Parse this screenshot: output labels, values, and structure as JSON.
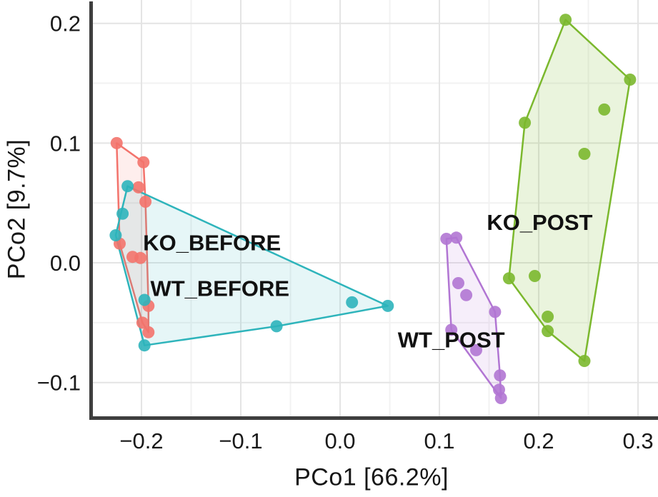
{
  "chart_data": {
    "type": "scatter",
    "title": "",
    "xlabel": "PCo1 [66.2%]",
    "ylabel": "PCo2 [9.7%]",
    "xlim": [
      -0.2511,
      0.3201
    ],
    "ylim": [
      -0.1282,
      0.2195
    ],
    "grid": "major and minor gridlines, white background",
    "legend_position": "inline group labels inside plot",
    "x_ticks": {
      "values": [
        -0.2,
        -0.1,
        0.0,
        0.1,
        0.2,
        0.3
      ],
      "labels": [
        "−0.2",
        "−0.1",
        "0.0",
        "0.1",
        "0.2",
        "0.3"
      ]
    },
    "y_ticks": {
      "values": [
        0.2,
        0.1,
        0.0,
        -0.1
      ],
      "labels": [
        "0.2",
        "0.1",
        "0.0",
        "−0.1"
      ]
    },
    "x_minor": [
      -0.25,
      -0.15,
      -0.05,
      0.05,
      0.15,
      0.25
    ],
    "y_minor": [
      0.15,
      0.05,
      -0.05
    ],
    "series": [
      {
        "name": "KO_BEFORE",
        "color": "#F3736C",
        "fill": "rgba(243,115,108,0.12)",
        "label_xy": [
          -0.129,
          0.017
        ],
        "points": [
          [
            -0.225,
            0.1
          ],
          [
            -0.198,
            0.084
          ],
          [
            -0.203,
            0.063
          ],
          [
            -0.196,
            0.051
          ],
          [
            -0.222,
            0.016
          ],
          [
            -0.209,
            0.005
          ],
          [
            -0.201,
            0.004
          ],
          [
            -0.193,
            -0.036
          ],
          [
            -0.199,
            -0.05
          ],
          [
            -0.193,
            -0.058
          ]
        ]
      },
      {
        "name": "WT_BEFORE",
        "color": "#2EB4BB",
        "fill": "rgba(46,180,187,0.12)",
        "label_xy": [
          -0.121,
          -0.021
        ],
        "points": [
          [
            -0.214,
            0.064
          ],
          [
            -0.219,
            0.041
          ],
          [
            -0.226,
            0.023
          ],
          [
            -0.197,
            -0.031
          ],
          [
            -0.197,
            -0.069
          ],
          [
            -0.064,
            -0.053
          ],
          [
            0.012,
            -0.033
          ],
          [
            0.048,
            -0.036
          ]
        ]
      },
      {
        "name": "WT_POST",
        "color": "#B175D3",
        "fill": "rgba(177,117,211,0.12)",
        "label_xy": [
          0.112,
          -0.064
        ],
        "points": [
          [
            0.107,
            0.02
          ],
          [
            0.117,
            0.021
          ],
          [
            0.119,
            -0.017
          ],
          [
            0.127,
            -0.027
          ],
          [
            0.156,
            -0.041
          ],
          [
            0.112,
            -0.056
          ],
          [
            0.137,
            -0.073
          ],
          [
            0.161,
            -0.094
          ],
          [
            0.16,
            -0.106
          ],
          [
            0.162,
            -0.113
          ]
        ]
      },
      {
        "name": "KO_POST",
        "color": "#7BB82D",
        "fill": "rgba(123,184,45,0.16)",
        "label_xy": [
          0.201,
          0.034
        ],
        "points": [
          [
            0.227,
            0.203
          ],
          [
            0.292,
            0.153
          ],
          [
            0.266,
            0.128
          ],
          [
            0.186,
            0.117
          ],
          [
            0.246,
            0.091
          ],
          [
            0.17,
            -0.013
          ],
          [
            0.196,
            -0.011
          ],
          [
            0.209,
            -0.045
          ],
          [
            0.209,
            -0.057
          ],
          [
            0.246,
            -0.082
          ]
        ]
      }
    ]
  }
}
